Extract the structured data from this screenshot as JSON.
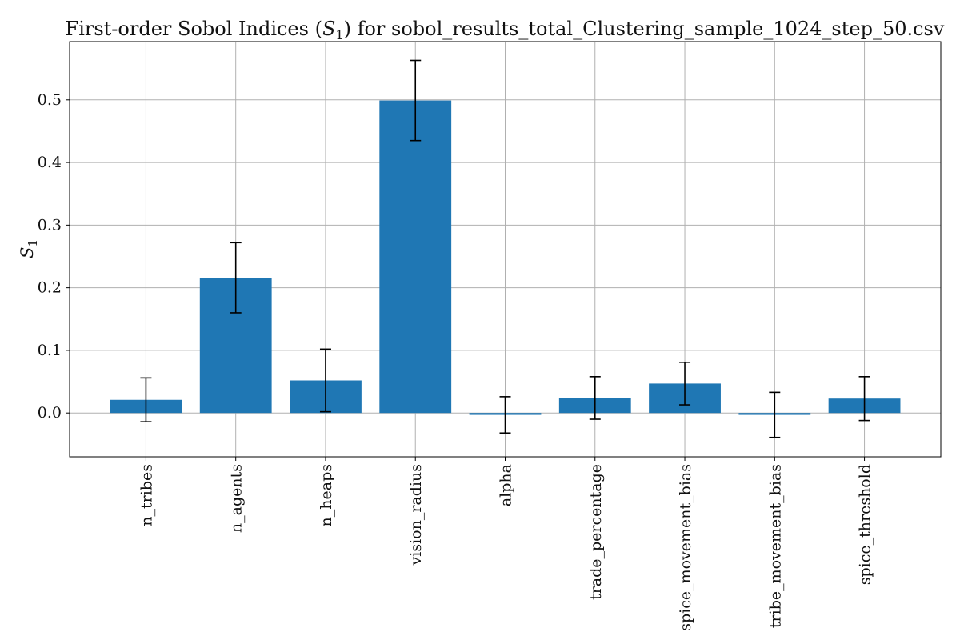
{
  "chart_data": {
    "type": "bar",
    "title_prefix": "First-order Sobol Indices (",
    "title_symbol": "S",
    "title_subscript": "1",
    "title_suffix": ") for sobol_results_total_Clustering_sample_1024_step_50.csv",
    "ylabel_symbol": "S",
    "ylabel_subscript": "1",
    "xlabel": "",
    "ylim": [
      -0.07,
      0.593
    ],
    "yticks": [
      0.0,
      0.1,
      0.2,
      0.3,
      0.4,
      0.5
    ],
    "ytick_labels": [
      "0.0",
      "0.1",
      "0.2",
      "0.3",
      "0.4",
      "0.5"
    ],
    "grid": true,
    "categories": [
      "n_tribes",
      "n_agents",
      "n_heaps",
      "vision_radius",
      "alpha",
      "trade_percentage",
      "spice_movement_bias",
      "tribe_movement_bias",
      "spice_threshold"
    ],
    "values": [
      0.021,
      0.216,
      0.052,
      0.499,
      -0.003,
      0.024,
      0.047,
      -0.003,
      0.023
    ],
    "errors": [
      0.035,
      0.056,
      0.05,
      0.064,
      0.029,
      0.034,
      0.034,
      0.036,
      0.035
    ],
    "bar_color": "#1f77b4"
  }
}
